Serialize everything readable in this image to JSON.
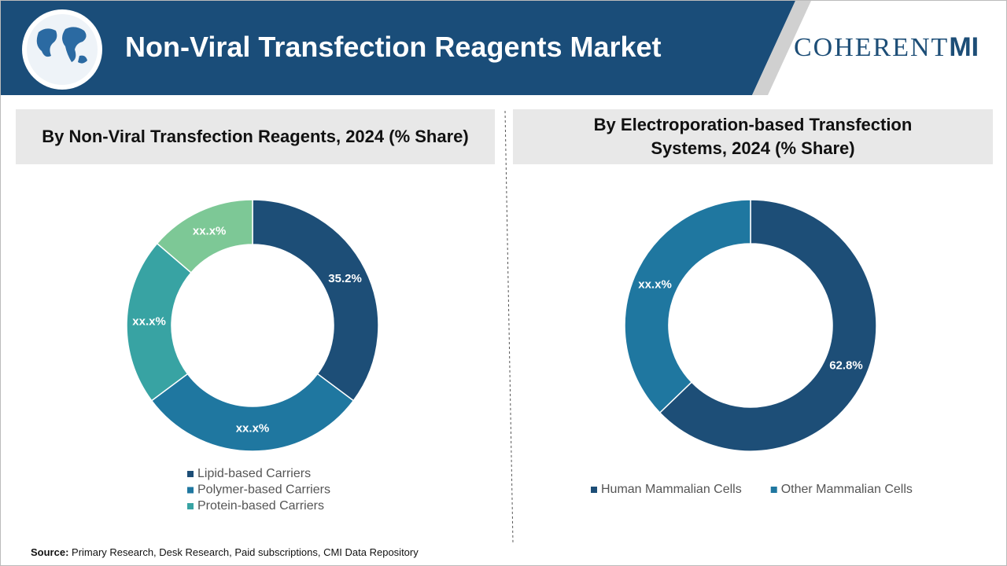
{
  "header": {
    "title": "Non-Viral Transfection Reagents Market",
    "logo": "COHERENT",
    "logo_accent": "MI"
  },
  "chart_data": [
    {
      "type": "donut",
      "title": "By Non-Viral Transfection Reagents, 2024 (% Share)",
      "categories": [
        "Lipid-based Carriers",
        "Polymer-based Carriers",
        "Protein-based Carriers",
        null
      ],
      "values": [
        35.2,
        29.6,
        21.5,
        13.7
      ],
      "value_labels": [
        "35.2%",
        "xx.x%",
        "xx.x%",
        "xx.x%"
      ],
      "colors": [
        "#1d4e77",
        "#1f77a0",
        "#38a3a3",
        "#7dc896"
      ]
    },
    {
      "type": "donut",
      "title": "By Electroporation-based Transfection Systems, 2024 (% Share)",
      "categories": [
        "Human Mammalian Cells",
        "Other Mammalian Cells"
      ],
      "values": [
        62.8,
        37.2
      ],
      "value_labels": [
        "62.8%",
        "xx.x%"
      ],
      "colors": [
        "#1d4e77",
        "#1f77a0"
      ]
    }
  ],
  "source": {
    "label": "Source:",
    "text": "Primary Research, Desk Research, Paid subscriptions, CMI Data Repository"
  }
}
